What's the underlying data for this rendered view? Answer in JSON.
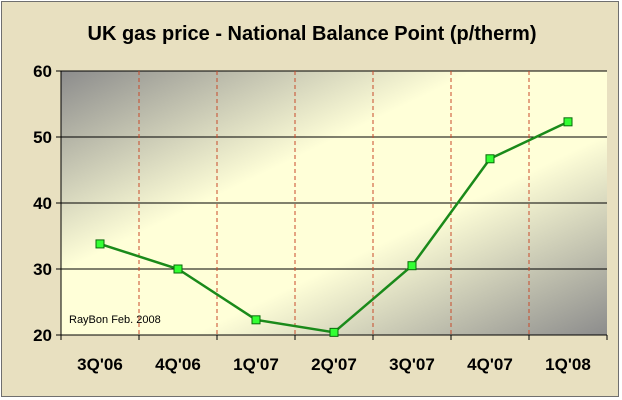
{
  "chart_data": {
    "type": "line",
    "title": "UK gas price - National Balance Point (p/therm)",
    "categories": [
      "3Q'06",
      "4Q'06",
      "1Q'07",
      "2Q'07",
      "3Q'07",
      "4Q'07",
      "1Q'08"
    ],
    "values": [
      33.8,
      30.0,
      22.3,
      20.4,
      30.5,
      46.7,
      52.3
    ],
    "ylim": [
      20,
      60
    ],
    "yticks": [
      20,
      30,
      40,
      50,
      60
    ],
    "grid": true,
    "legend": "none",
    "annotation": "RayBon Feb. 2008",
    "colors": {
      "line": "#1a8a1a",
      "marker_fill": "#33ff33",
      "gridline": "#000000",
      "vertical_gridline": "#c84a2a",
      "frame_background": "#e8e0c0"
    }
  }
}
